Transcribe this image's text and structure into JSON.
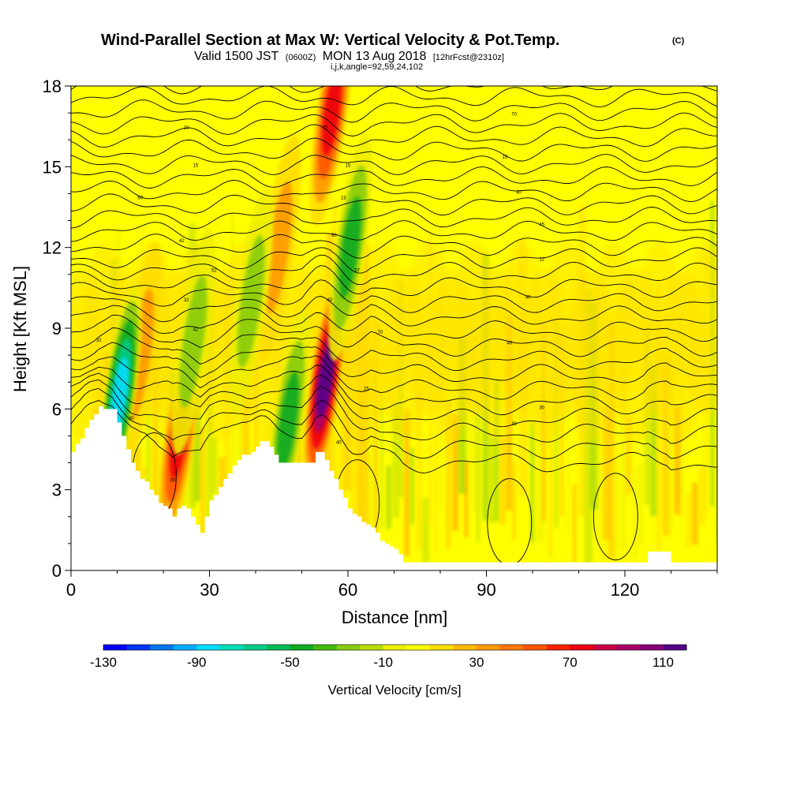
{
  "title": {
    "main": "Wind-Parallel Section at Max W: Vertical Velocity & Pot.Temp.",
    "copyright": "(C)",
    "valid_prefix": "Valid 1500 JST",
    "valid_utc": "(0600Z)",
    "valid_date": "MON 13 Aug 2018",
    "forecast": "[12hrFcst@2310z]",
    "params": "i,j,k,angle=92,59,24,102"
  },
  "chart_data": {
    "type": "heatmap",
    "title": "Wind-Parallel Section at Max W: Vertical Velocity & Pot.Temp.",
    "xlabel": "Distance [nm]",
    "ylabel": "Height [Kft MSL]",
    "xlim": [
      0,
      140
    ],
    "ylim": [
      0,
      18
    ],
    "xticks": [
      0,
      30,
      60,
      90,
      120
    ],
    "yticks": [
      0,
      3,
      6,
      9,
      12,
      15,
      18
    ],
    "colorbar": {
      "title": "Vertical Velocity [cm/s]",
      "min": -130,
      "max": 120,
      "step": 10,
      "tick_labels": [
        -130,
        -90,
        -50,
        -10,
        30,
        70,
        110
      ],
      "colors": [
        "#0000ff",
        "#0033ff",
        "#0077ee",
        "#00aaff",
        "#00ddff",
        "#00ddbb",
        "#00cc88",
        "#00bb55",
        "#11aa22",
        "#44bb11",
        "#88cc11",
        "#bbdd00",
        "#eeee00",
        "#ffff00",
        "#ffdd00",
        "#ffbb00",
        "#ff9900",
        "#ff7700",
        "#ff5500",
        "#ff2200",
        "#ee0011",
        "#cc0044",
        "#aa0066",
        "#880077",
        "#550088"
      ]
    },
    "terrain_kft": [
      [
        0,
        4.4
      ],
      [
        1,
        4.7
      ],
      [
        2,
        4.9
      ],
      [
        3,
        5.3
      ],
      [
        4,
        5.6
      ],
      [
        5,
        5.8
      ],
      [
        6,
        6.1
      ],
      [
        7,
        6.0
      ],
      [
        8,
        6.0
      ],
      [
        9,
        6.0
      ],
      [
        10,
        5.5
      ],
      [
        11,
        5.0
      ],
      [
        12,
        4.5
      ],
      [
        13,
        4.0
      ],
      [
        14,
        3.7
      ],
      [
        15,
        3.4
      ],
      [
        16,
        3.3
      ],
      [
        17,
        3.0
      ],
      [
        18,
        2.8
      ],
      [
        19,
        2.5
      ],
      [
        20,
        2.4
      ],
      [
        21,
        2.3
      ],
      [
        22,
        2.0
      ],
      [
        23,
        2.3
      ],
      [
        24,
        2.4
      ],
      [
        25,
        2.3
      ],
      [
        26,
        2.0
      ],
      [
        27,
        1.7
      ],
      [
        28,
        1.4
      ],
      [
        29,
        2.0
      ],
      [
        30,
        2.6
      ],
      [
        31,
        2.8
      ],
      [
        32,
        3.1
      ],
      [
        33,
        3.4
      ],
      [
        34,
        3.6
      ],
      [
        35,
        3.9
      ],
      [
        36,
        4.1
      ],
      [
        37,
        4.3
      ],
      [
        38,
        4.3
      ],
      [
        39,
        4.4
      ],
      [
        40,
        4.6
      ],
      [
        41,
        4.8
      ],
      [
        42,
        4.8
      ],
      [
        43,
        4.6
      ],
      [
        44,
        4.3
      ],
      [
        45,
        4.0
      ],
      [
        46,
        4.0
      ],
      [
        47,
        4.0
      ],
      [
        48,
        4.0
      ],
      [
        49,
        4.0
      ],
      [
        50,
        4.0
      ],
      [
        51,
        4.0
      ],
      [
        52,
        4.0
      ],
      [
        53,
        4.4
      ],
      [
        54,
        4.4
      ],
      [
        55,
        4.1
      ],
      [
        56,
        3.7
      ],
      [
        57,
        3.4
      ],
      [
        58,
        3.0
      ],
      [
        59,
        2.7
      ],
      [
        60,
        2.3
      ],
      [
        61,
        2.1
      ],
      [
        62,
        2.0
      ],
      [
        63,
        1.8
      ],
      [
        64,
        1.7
      ],
      [
        65,
        1.6
      ],
      [
        66,
        1.4
      ],
      [
        67,
        1.1
      ],
      [
        68,
        1.0
      ],
      [
        69,
        0.9
      ],
      [
        70,
        0.8
      ],
      [
        71,
        0.6
      ],
      [
        72,
        0.3
      ],
      [
        73,
        0.3
      ],
      [
        100,
        0.3
      ],
      [
        124,
        0.3
      ],
      [
        125,
        0.7
      ],
      [
        129,
        0.7
      ],
      [
        130,
        0.3
      ],
      [
        140,
        0.3
      ]
    ],
    "vertical_velocity_features": [
      {
        "type": "updraft",
        "x": 23.5,
        "z": 5.0,
        "max_cm_s": 75
      },
      {
        "type": "updraft",
        "x": 55.0,
        "z": 7.0,
        "max_cm_s": 115
      },
      {
        "type": "updraft",
        "x": 56.5,
        "z": 17.0,
        "max_cm_s": 70
      },
      {
        "type": "updraft",
        "x": 45.0,
        "z": 12.0,
        "max_cm_s": 40
      },
      {
        "type": "updraft",
        "x": 15.0,
        "z": 8.0,
        "max_cm_s": 30
      },
      {
        "type": "downdraft",
        "x": 10.5,
        "z": 6.5,
        "min_cm_s": -100
      },
      {
        "type": "downdraft",
        "x": 60.5,
        "z": 12.0,
        "min_cm_s": -55
      },
      {
        "type": "downdraft",
        "x": 47.0,
        "z": 5.5,
        "min_cm_s": -50
      },
      {
        "type": "downdraft",
        "x": 26.5,
        "z": 8.5,
        "min_cm_s": -40
      },
      {
        "type": "downdraft",
        "x": 39.0,
        "z": 10.0,
        "min_cm_s": -30
      }
    ],
    "theta_contour_labels": [
      {
        "x": 25,
        "z": 16.4,
        "text": "10"
      },
      {
        "x": 27,
        "z": 15.0,
        "text": "15"
      },
      {
        "x": 15,
        "z": 13.8,
        "text": "60"
      },
      {
        "x": 24,
        "z": 12.2,
        "text": "42"
      },
      {
        "x": 31,
        "z": 11.1,
        "text": "52"
      },
      {
        "x": 25,
        "z": 10.0,
        "text": "32"
      },
      {
        "x": 27,
        "z": 8.9,
        "text": "42"
      },
      {
        "x": 6,
        "z": 8.5,
        "text": "32"
      },
      {
        "x": 13,
        "z": 5.6,
        "text": "30"
      },
      {
        "x": 22,
        "z": 3.3,
        "text": "30"
      },
      {
        "x": 55,
        "z": 16.4,
        "text": "70"
      },
      {
        "x": 60,
        "z": 15.0,
        "text": "15"
      },
      {
        "x": 59,
        "z": 13.8,
        "text": "13"
      },
      {
        "x": 57,
        "z": 12.4,
        "text": "60"
      },
      {
        "x": 62,
        "z": 11.1,
        "text": "57"
      },
      {
        "x": 56,
        "z": 10.0,
        "text": "40"
      },
      {
        "x": 67,
        "z": 8.8,
        "text": "70"
      },
      {
        "x": 64,
        "z": 6.7,
        "text": "25"
      },
      {
        "x": 58,
        "z": 4.7,
        "text": "40"
      },
      {
        "x": 96,
        "z": 16.9,
        "text": "70"
      },
      {
        "x": 94,
        "z": 15.3,
        "text": "15"
      },
      {
        "x": 97,
        "z": 14.0,
        "text": "40"
      },
      {
        "x": 102,
        "z": 12.8,
        "text": "45"
      },
      {
        "x": 102,
        "z": 11.5,
        "text": "12"
      },
      {
        "x": 99,
        "z": 10.1,
        "text": "40"
      },
      {
        "x": 95,
        "z": 8.4,
        "text": "40"
      },
      {
        "x": 102,
        "z": 6.0,
        "text": "30"
      },
      {
        "x": 96,
        "z": 5.4,
        "text": "30"
      }
    ]
  }
}
